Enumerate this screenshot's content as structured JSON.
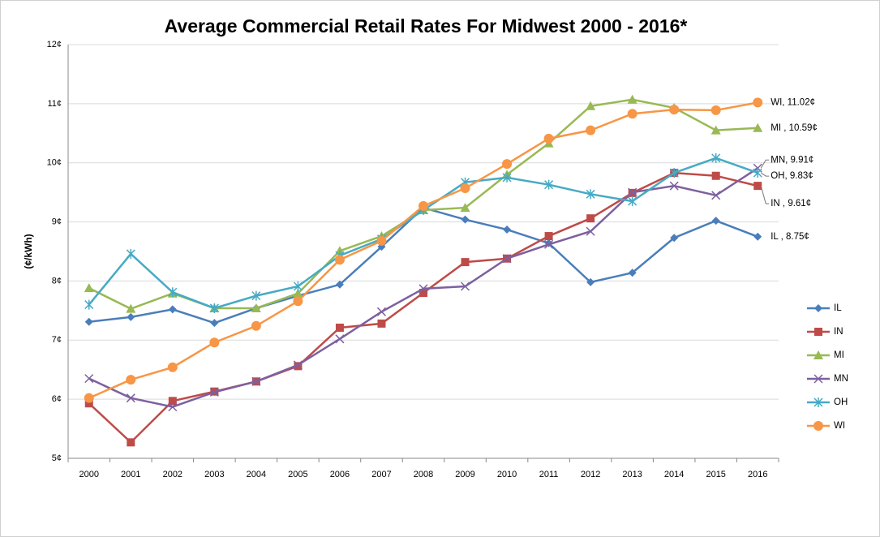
{
  "chart_data": {
    "type": "line",
    "title": "Average Commercial Retail Rates For Midwest 2000 - 2016*",
    "y_label": "(¢/kWh)",
    "categories": [
      "2000",
      "2001",
      "2002",
      "2003",
      "2004",
      "2005",
      "2006",
      "2007",
      "2008",
      "2009",
      "2010",
      "2011",
      "2012",
      "2013",
      "2014",
      "2015",
      "2016"
    ],
    "ylim": [
      5,
      12
    ],
    "yticks": [
      {
        "value": 5,
        "label": "5¢"
      },
      {
        "value": 6,
        "label": "6¢"
      },
      {
        "value": 7,
        "label": "7¢"
      },
      {
        "value": 8,
        "label": "8¢"
      },
      {
        "value": 9,
        "label": "9¢"
      },
      {
        "value": 10,
        "label": "10¢"
      },
      {
        "value": 11,
        "label": "11¢"
      },
      {
        "value": 12,
        "label": "12¢"
      }
    ],
    "grid": true,
    "legend": "right",
    "series": [
      {
        "name": "IL",
        "color": "#4a7ebb",
        "marker": "diamond",
        "values": [
          7.31,
          7.39,
          7.52,
          7.29,
          7.54,
          7.75,
          7.94,
          8.58,
          9.24,
          9.04,
          8.87,
          8.64,
          7.98,
          8.14,
          8.73,
          9.02,
          8.75
        ],
        "value_labels": [
          null,
          null,
          null,
          null,
          null,
          null,
          null,
          null,
          null,
          null,
          null,
          null,
          null,
          null,
          null,
          null,
          "IL , 8.75¢"
        ]
      },
      {
        "name": "IN",
        "color": "#be4b48",
        "marker": "square",
        "values": [
          5.93,
          5.27,
          5.97,
          6.13,
          6.3,
          6.56,
          7.21,
          7.28,
          7.8,
          8.32,
          8.38,
          8.76,
          9.06,
          9.49,
          9.83,
          9.78,
          9.61
        ],
        "value_labels": [
          null,
          null,
          null,
          null,
          null,
          null,
          null,
          null,
          null,
          null,
          null,
          null,
          null,
          null,
          null,
          null,
          "IN , 9.61¢"
        ]
      },
      {
        "name": "MI",
        "color": "#98b954",
        "marker": "triangle",
        "values": [
          7.88,
          7.53,
          7.79,
          7.54,
          7.54,
          7.79,
          8.51,
          8.76,
          9.2,
          9.24,
          9.8,
          10.33,
          10.96,
          11.07,
          10.93,
          10.55,
          10.59
        ],
        "value_labels": [
          null,
          null,
          null,
          null,
          null,
          null,
          null,
          null,
          null,
          null,
          null,
          null,
          null,
          null,
          null,
          null,
          "MI , 10.59¢"
        ]
      },
      {
        "name": "MN",
        "color": "#7d60a0",
        "marker": "x",
        "values": [
          6.35,
          6.02,
          5.87,
          6.12,
          6.3,
          6.58,
          7.02,
          7.48,
          7.87,
          7.91,
          8.38,
          8.62,
          8.84,
          9.5,
          9.61,
          9.45,
          9.91
        ],
        "value_labels": [
          null,
          null,
          null,
          null,
          null,
          null,
          null,
          null,
          null,
          null,
          null,
          null,
          null,
          null,
          null,
          null,
          "MN, 9.91¢"
        ]
      },
      {
        "name": "OH",
        "color": "#46aac5",
        "marker": "star",
        "values": [
          7.6,
          8.46,
          7.81,
          7.54,
          7.75,
          7.91,
          8.43,
          8.71,
          9.2,
          9.67,
          9.75,
          9.63,
          9.47,
          9.35,
          9.83,
          10.08,
          9.83
        ],
        "value_labels": [
          null,
          null,
          null,
          null,
          null,
          null,
          null,
          null,
          null,
          null,
          null,
          null,
          null,
          null,
          null,
          null,
          "OH, 9.83¢"
        ]
      },
      {
        "name": "WI",
        "color": "#f79646",
        "marker": "circle",
        "values": [
          6.02,
          6.33,
          6.54,
          6.96,
          7.24,
          7.66,
          8.36,
          8.68,
          9.27,
          9.57,
          9.98,
          10.41,
          10.55,
          10.83,
          10.9,
          10.89,
          11.02
        ],
        "value_labels": [
          null,
          null,
          null,
          null,
          null,
          null,
          null,
          null,
          null,
          null,
          null,
          null,
          null,
          null,
          null,
          null,
          "WI, 11.02¢"
        ]
      }
    ]
  }
}
